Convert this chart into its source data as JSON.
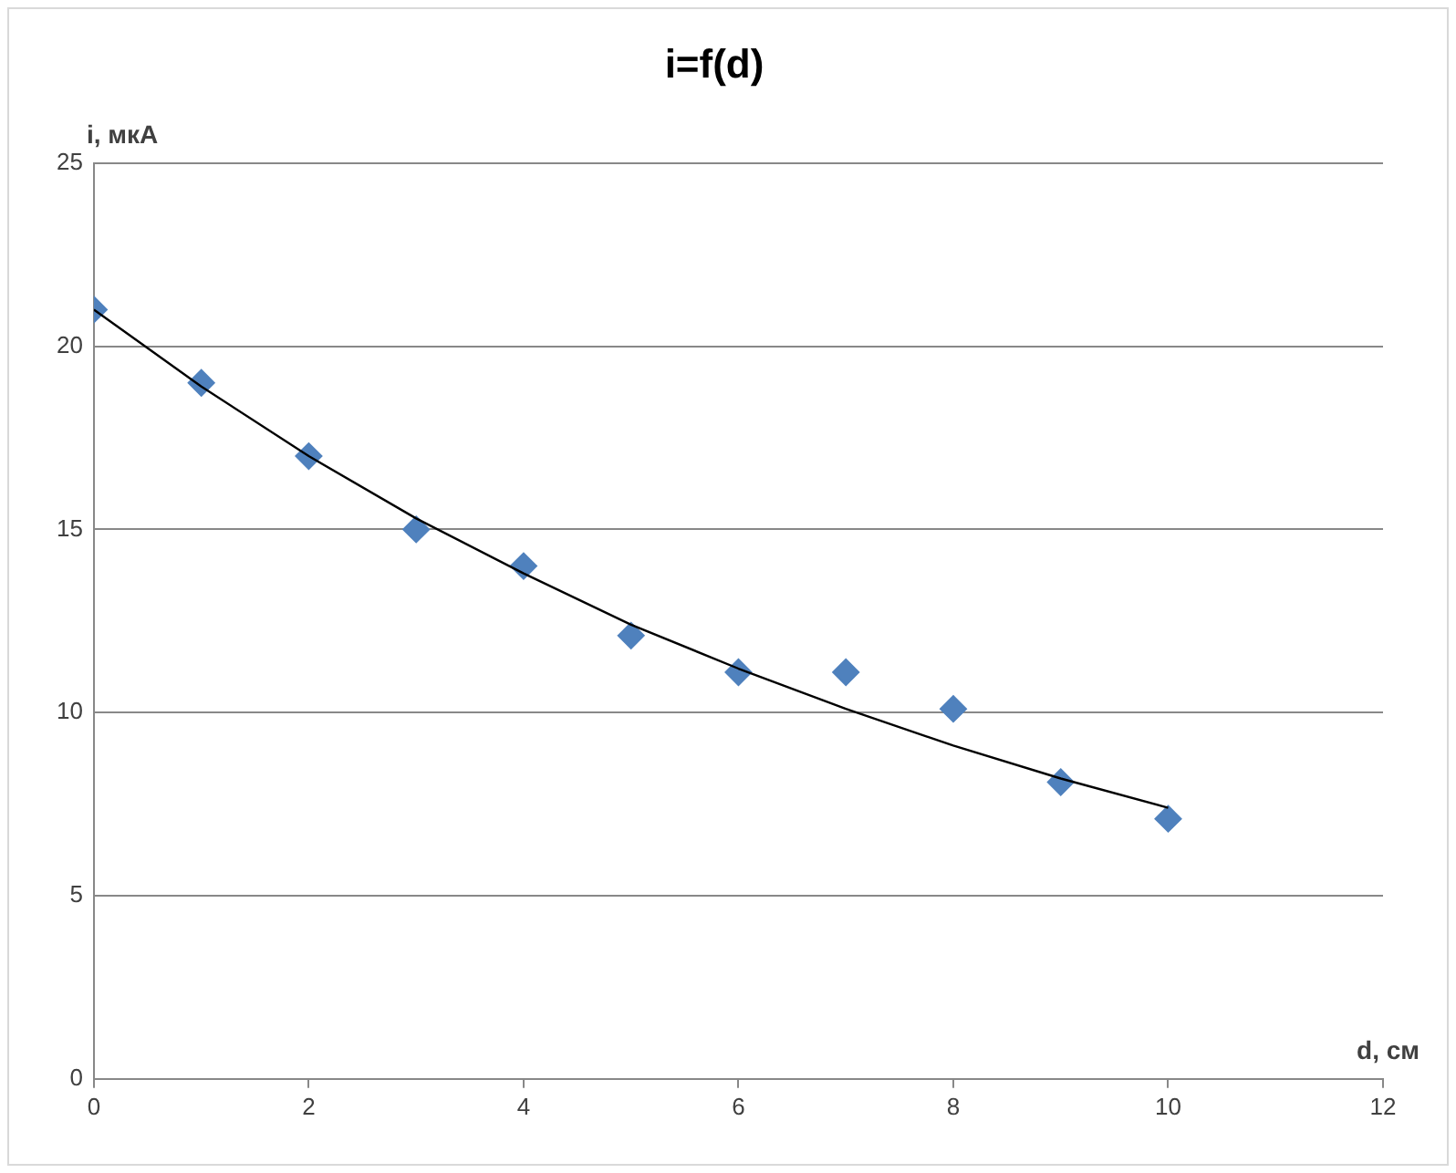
{
  "chart_data": {
    "type": "scatter",
    "title": "i=f(d)",
    "xlabel": "d, см",
    "ylabel": "i, мкА",
    "xlim": [
      0,
      12
    ],
    "xticks": [
      0,
      2,
      4,
      6,
      8,
      10,
      12
    ],
    "ylim": [
      0,
      25
    ],
    "yticks": [
      0,
      5,
      10,
      15,
      20,
      25
    ],
    "grid": "y",
    "marker": "diamond",
    "series": [
      {
        "color": "#4f81bd",
        "x": [
          0,
          1,
          2,
          3,
          4,
          5,
          6,
          7,
          8,
          9,
          10
        ],
        "values": [
          21,
          19,
          17,
          15,
          14,
          12.1,
          11.1,
          11.1,
          10.1,
          8.1,
          7.1
        ]
      },
      {
        "type": "line",
        "marker": "none",
        "color": "#000000",
        "x": [
          0,
          1,
          2,
          3,
          4,
          5,
          6,
          7,
          8,
          9,
          10
        ],
        "values": [
          21,
          18.9,
          17,
          15.3,
          13.8,
          12.4,
          11.2,
          10.1,
          9.1,
          8.2,
          7.4
        ]
      }
    ]
  }
}
